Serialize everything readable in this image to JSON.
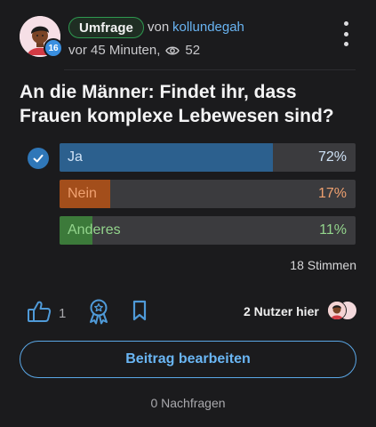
{
  "header": {
    "user_level": "16",
    "tag": "Umfrage",
    "von": "von",
    "author": "kollundegah",
    "time": "vor 45 Minuten,",
    "views": "52"
  },
  "question": "An die Männer: Findet ihr, dass Frauen komplexe Lebewesen sind?",
  "poll": {
    "options": [
      {
        "label": "Ja",
        "percent_text": "72%",
        "fraction": 0.72,
        "fill": "#2c608e",
        "bg": "#3b3b3e",
        "text_color": "#cfe2f6",
        "selected": true
      },
      {
        "label": "Nein",
        "percent_text": "17%",
        "fraction": 0.17,
        "fill": "#a34e1b",
        "bg": "#3b3b3e",
        "text_color": "#f0a170",
        "selected": false
      },
      {
        "label": "Anderes",
        "percent_text": "11%",
        "fraction": 0.11,
        "fill": "#3c7a3a",
        "bg": "#3b3b3e",
        "text_color": "#93d48c",
        "selected": false
      }
    ],
    "votes": "18 Stimmen"
  },
  "actions": {
    "likes": "1",
    "users_here": "2 Nutzer hier"
  },
  "edit_button": "Beitrag bearbeiten",
  "nachfragen": "0 Nachfragen",
  "colors": {
    "accent": "#69b4f2",
    "background": "#1b1b1d",
    "tag_border": "#2e9a50"
  }
}
